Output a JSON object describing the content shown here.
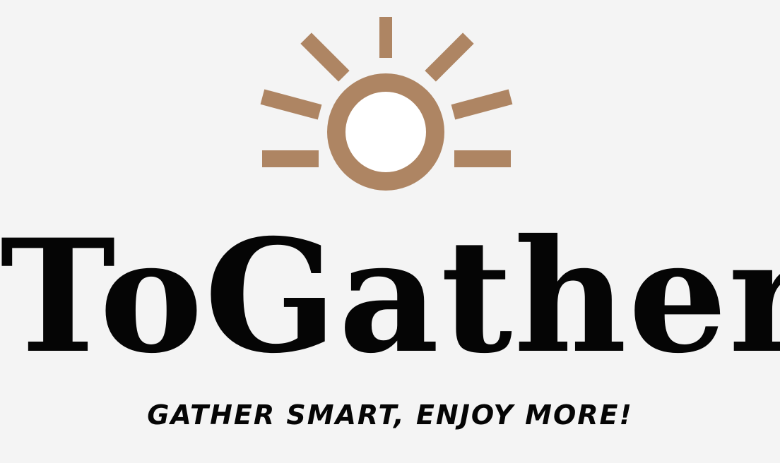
{
  "logo": {
    "brand_name": "ToGather",
    "tagline": "GATHER SMART, ENJOY MORE!",
    "icon": "sun-icon",
    "colors": {
      "background": "#f4f4f4",
      "accent": "#ae8563",
      "sun_center": "#ffffff",
      "text": "#050505"
    }
  }
}
